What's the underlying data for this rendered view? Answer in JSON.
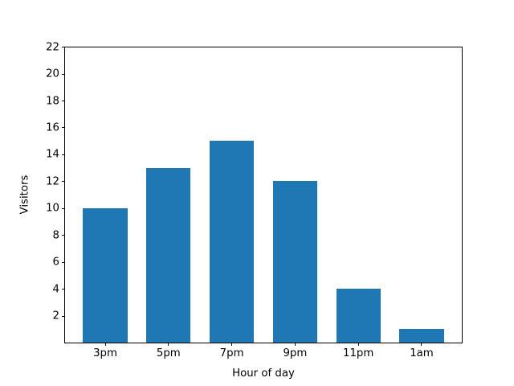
{
  "chart_data": {
    "type": "bar",
    "title": "",
    "xlabel": "Hour of day",
    "ylabel": "Visitors",
    "categories": [
      "3pm",
      "5pm",
      "7pm",
      "9pm",
      "11pm",
      "1am"
    ],
    "values": [
      10,
      13,
      15,
      12,
      4,
      1
    ],
    "ylim": [
      0,
      22
    ],
    "yticks": [
      2,
      4,
      6,
      8,
      10,
      12,
      14,
      16,
      18,
      20,
      22
    ],
    "xlim": [
      -0.635,
      5.635
    ],
    "bar_width": 0.7,
    "bar_color": "#1f77b4",
    "spine_color": "#000000",
    "text_color": "#000000",
    "background": "#ffffff",
    "grid": false,
    "legend": null
  }
}
